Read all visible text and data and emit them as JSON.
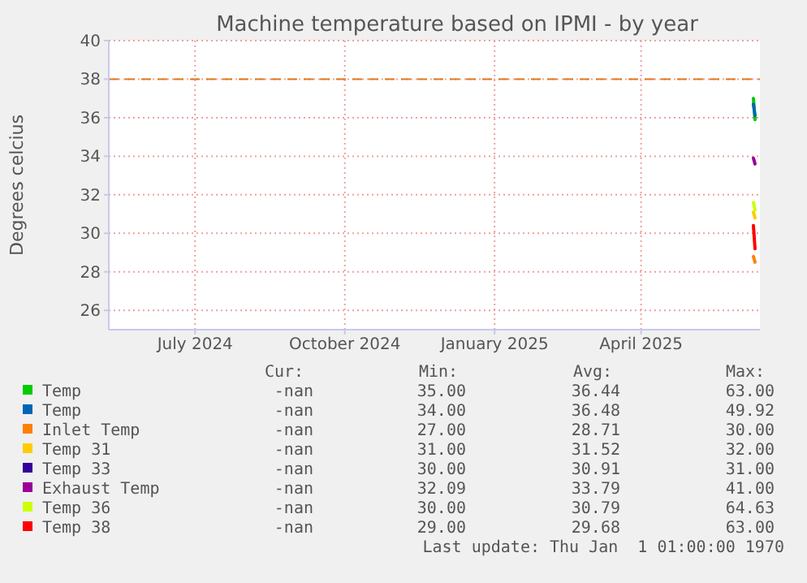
{
  "chart_data": {
    "type": "line",
    "title": "Machine temperature based on IPMI - by year",
    "ylabel": "Degrees celcius",
    "x": [
      "2025-06-09",
      "2025-06-10"
    ],
    "xlim": [
      "2024-05-09",
      "2025-06-13"
    ],
    "xticks": [
      {
        "value": "2024-07-01",
        "label": "July 2024"
      },
      {
        "value": "2024-10-01",
        "label": "October 2024"
      },
      {
        "value": "2025-01-01",
        "label": "January 2025"
      },
      {
        "value": "2025-04-01",
        "label": "April 2025"
      }
    ],
    "ylim": [
      25,
      40
    ],
    "yticks": [
      26,
      28,
      30,
      32,
      34,
      36,
      38,
      40
    ],
    "grid": true,
    "legend": "bottom",
    "series": [
      {
        "name": "Temp",
        "color": "#00cc00",
        "values": [
          37.0,
          35.9
        ]
      },
      {
        "name": "Temp",
        "color": "#0066b3",
        "values": [
          36.7,
          36.1
        ]
      },
      {
        "name": "Inlet Temp",
        "color": "#ff8000",
        "values": [
          28.8,
          28.5
        ]
      },
      {
        "name": "Temp 31",
        "color": "#ffcc00",
        "values": [
          31.1,
          30.8
        ]
      },
      {
        "name": "Temp 33",
        "color": "#330099",
        "values": [
          null,
          null
        ]
      },
      {
        "name": "Exhaust Temp",
        "color": "#990099",
        "values": [
          33.9,
          33.6
        ]
      },
      {
        "name": "Temp 36",
        "color": "#ccff00",
        "values": [
          31.6,
          31.2
        ]
      },
      {
        "name": "Temp 38",
        "color": "#ff0000",
        "values": [
          30.4,
          29.2
        ]
      }
    ],
    "ref_lines": [
      {
        "axis": "y",
        "value": 38,
        "color": "#e07a1f",
        "line_style": "dashed"
      }
    ],
    "annotations": [
      "Cur:",
      "Min:",
      "Avg:",
      "Max:",
      "-nan",
      "35.00",
      "36.44",
      "63.00",
      "-nan",
      "34.00",
      "36.48",
      "49.92",
      "-nan",
      "27.00",
      "28.71",
      "30.00",
      "-nan",
      "31.00",
      "31.52",
      "32.00",
      "-nan",
      "30.00",
      "30.91",
      "31.00",
      "-nan",
      "32.09",
      "33.79",
      "41.00",
      "-nan",
      "30.00",
      "30.79",
      "64.63",
      "-nan",
      "29.00",
      "29.68",
      "63.00",
      "Last update: Thu Jan  1 01:00:00 1970"
    ]
  }
}
